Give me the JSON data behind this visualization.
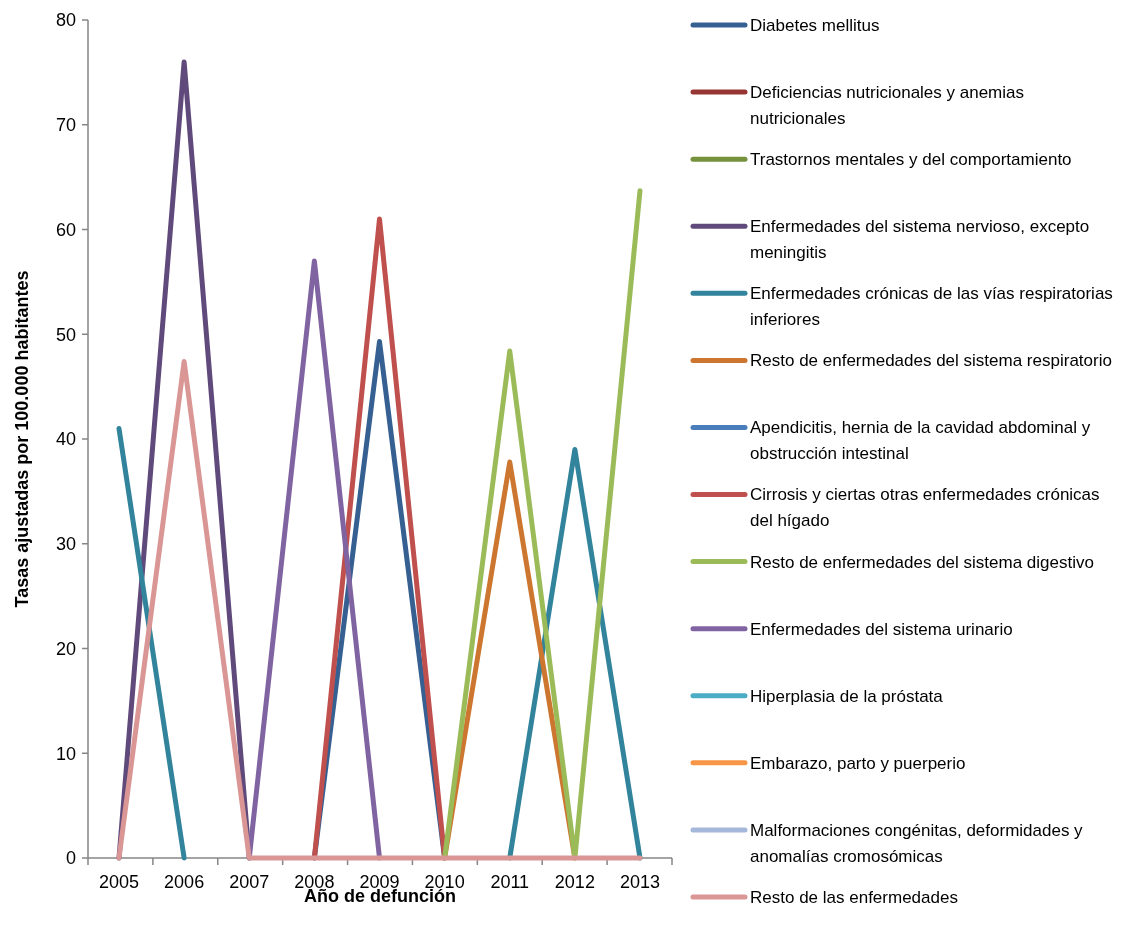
{
  "chart_data": {
    "type": "line",
    "xlabel": "Año de defunción",
    "ylabel": "Tasas ajustadas por 100.000 habitantes",
    "categories": [
      "2005",
      "2006",
      "2007",
      "2008",
      "2009",
      "2010",
      "2011",
      "2012",
      "2013"
    ],
    "ylim": [
      0,
      80
    ],
    "yticks": [
      0,
      10,
      20,
      30,
      40,
      50,
      60,
      70,
      80
    ],
    "grid": false,
    "legend": "right",
    "marker": "none",
    "line_style": "solid",
    "series": [
      {
        "name": "Diabetes mellitus",
        "color": "#376092",
        "values": [
          null,
          null,
          null,
          0,
          49.3,
          0,
          null,
          null,
          null
        ]
      },
      {
        "name": "Deficiencias nutricionales y anemias nutricionales",
        "color": "#963634",
        "values": [
          null,
          null,
          null,
          null,
          null,
          null,
          null,
          null,
          null
        ]
      },
      {
        "name": "Trastornos mentales y del comportamiento",
        "color": "#76923c",
        "values": [
          null,
          null,
          null,
          null,
          null,
          null,
          null,
          null,
          null
        ]
      },
      {
        "name": "Enfermedades del sistema nervioso, excepto meningitis",
        "color": "#604a7b",
        "values": [
          0,
          76,
          0,
          null,
          null,
          null,
          null,
          null,
          null
        ]
      },
      {
        "name": "Enfermedades crónicas de las vías respiratorias inferiores",
        "color": "#31849b",
        "values": [
          41,
          0,
          null,
          null,
          null,
          null,
          0,
          39,
          0
        ]
      },
      {
        "name": "Resto de enfermedades del sistema respiratorio",
        "color": "#cc7630",
        "values": [
          null,
          null,
          null,
          null,
          null,
          0,
          37.8,
          0,
          null
        ]
      },
      {
        "name": "Apendicitis, hernia de la cavidad abdominal y obstrucción intestinal",
        "color": "#4a7ebb",
        "values": [
          null,
          null,
          null,
          null,
          null,
          null,
          null,
          null,
          null
        ]
      },
      {
        "name": "Cirrosis y ciertas otras enfermedades crónicas del hígado",
        "color": "#c0504d",
        "values": [
          null,
          null,
          null,
          0,
          61,
          0,
          null,
          null,
          null
        ]
      },
      {
        "name": "Resto de enfermedades del sistema digestivo",
        "color": "#9bbb59",
        "values": [
          null,
          null,
          null,
          null,
          null,
          0,
          48.4,
          0,
          63.7
        ]
      },
      {
        "name": "Enfermedades del sistema urinario",
        "color": "#8064a2",
        "values": [
          null,
          null,
          0,
          57,
          0,
          null,
          null,
          null,
          null
        ]
      },
      {
        "name": "Hiperplasia de la próstata",
        "color": "#4bacc6",
        "values": [
          null,
          null,
          null,
          null,
          null,
          null,
          null,
          null,
          null
        ]
      },
      {
        "name": "Embarazo, parto y puerperio",
        "color": "#f79646",
        "values": [
          null,
          null,
          null,
          null,
          null,
          null,
          null,
          null,
          null
        ]
      },
      {
        "name": "Malformaciones congénitas, deformidades y anomalías cromosómicas",
        "color": "#a5b8d9",
        "values": [
          null,
          null,
          null,
          null,
          null,
          null,
          null,
          null,
          null
        ]
      },
      {
        "name": "Resto de las enfermedades",
        "color": "#d99694",
        "values": [
          0,
          47.4,
          0,
          0,
          0,
          0,
          0,
          0,
          0
        ]
      }
    ]
  }
}
